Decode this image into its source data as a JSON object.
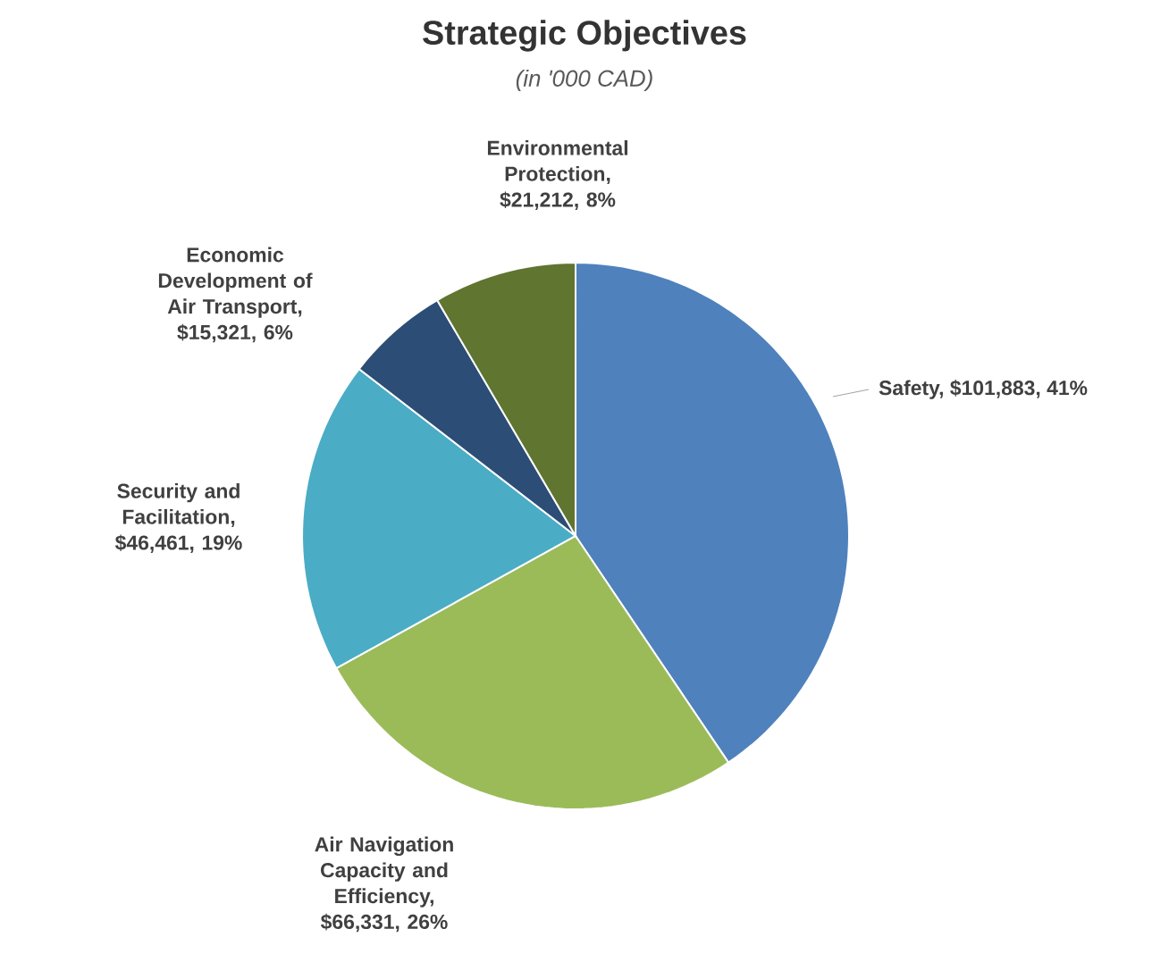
{
  "chart_data": {
    "type": "pie",
    "title": "Strategic Objectives",
    "subtitle": "(in '000 CAD)",
    "categories": [
      "Safety, $101,883, 41%",
      "Air Navigation Capacity and Efficiency, $66,331, 26%",
      "Security and Facilitation, $46,461, 19%",
      "Economic Development of Air Transport, $15,321, 6%",
      "Environmental Protection, $21,212, 8%"
    ],
    "values": [
      101883,
      66331,
      46461,
      15321,
      21212
    ],
    "colors": [
      "#4f81bd",
      "#9bbb59",
      "#4bacc6",
      "#2c4d75",
      "#5f7530"
    ]
  }
}
